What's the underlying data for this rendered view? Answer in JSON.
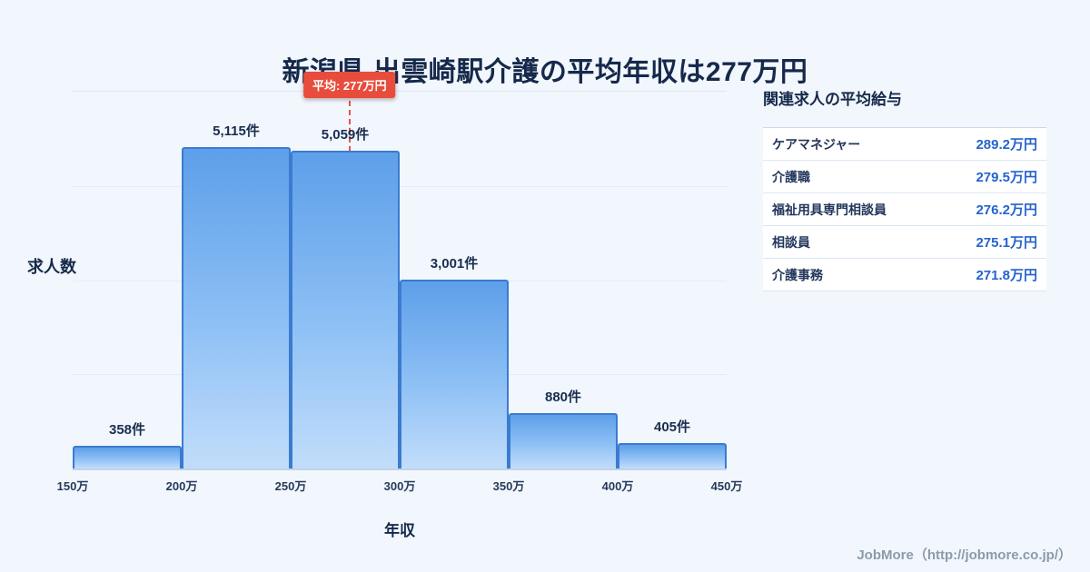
{
  "page": {
    "title": "新潟県 出雲崎駅介護の平均年収は277万円",
    "footer": "JobMore（http://jobmore.co.jp/）",
    "background_color": "#f1f7fd"
  },
  "chart_data": {
    "type": "bar",
    "title": "新潟県 出雲崎駅介護の平均年収は277万円",
    "xlabel": "年収",
    "ylabel": "求人数",
    "bin_edges": [
      150,
      200,
      250,
      300,
      350,
      400,
      450
    ],
    "x_ticks": [
      "150万",
      "200万",
      "250万",
      "300万",
      "350万",
      "400万",
      "450万"
    ],
    "values": [
      358,
      5115,
      5059,
      3001,
      880,
      405
    ],
    "value_labels": [
      "358件",
      "5,115件",
      "5,059件",
      "3,001件",
      "880件",
      "405件"
    ],
    "ylim": [
      0,
      6000
    ],
    "grid": true,
    "bar_fill_top": "#5d9fe9",
    "bar_fill_bottom": "#c2ddfb",
    "bar_border_color": "#3b7bd0",
    "average": {
      "value": 277,
      "label": "平均: 277万円",
      "line_color": "#e74c3c"
    }
  },
  "salary_table": {
    "heading": "関連求人の平均給与",
    "value_color": "#2563cf",
    "rows": [
      {
        "job": "ケアマネジャー",
        "salary": "289.2万円"
      },
      {
        "job": "介護職",
        "salary": "279.5万円"
      },
      {
        "job": "福祉用具専門相談員",
        "salary": "276.2万円"
      },
      {
        "job": "相談員",
        "salary": "275.1万円"
      },
      {
        "job": "介護事務",
        "salary": "271.8万円"
      }
    ]
  }
}
